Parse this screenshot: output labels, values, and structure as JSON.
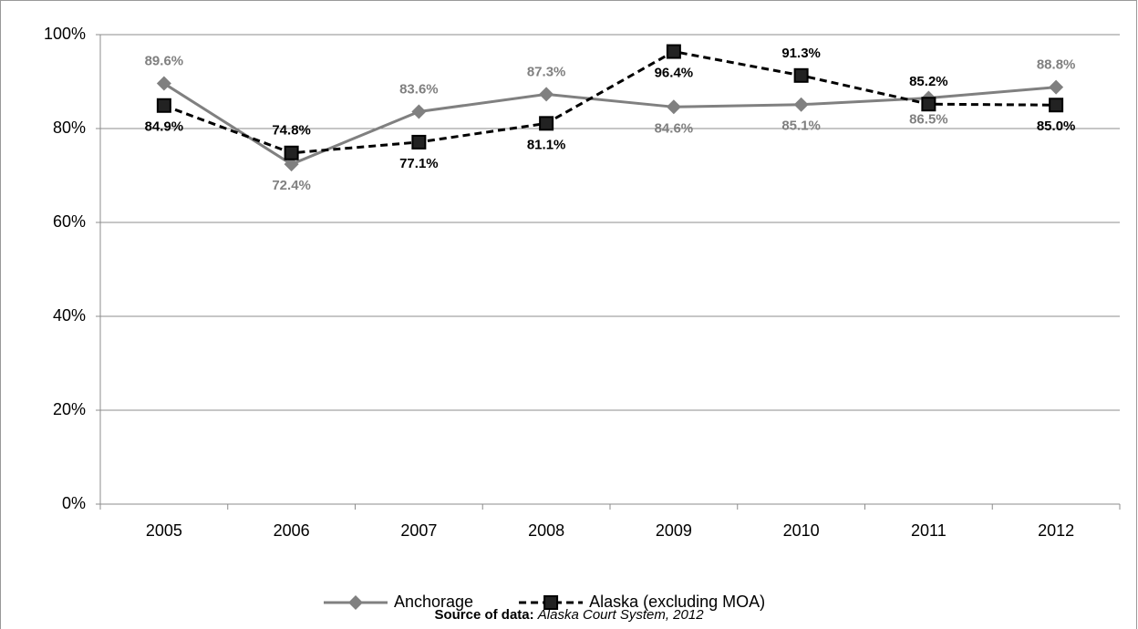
{
  "chart_data": {
    "type": "line",
    "categories": [
      "2005",
      "2006",
      "2007",
      "2008",
      "2009",
      "2010",
      "2011",
      "2012"
    ],
    "series": [
      {
        "name": "Anchorage",
        "color": "#808080",
        "marker": "diamond",
        "line_style": "solid",
        "values": [
          89.6,
          72.4,
          83.6,
          87.3,
          84.6,
          85.1,
          86.5,
          88.8
        ],
        "value_labels": [
          "89.6%",
          "72.4%",
          "83.6%",
          "87.3%",
          "84.6%",
          "85.1%",
          "86.5%",
          "88.8%"
        ]
      },
      {
        "name": "Alaska (excluding MOA)",
        "color": "#000000",
        "marker": "square",
        "line_style": "dashed",
        "values": [
          84.9,
          74.8,
          77.1,
          81.1,
          96.4,
          91.3,
          85.2,
          85.0
        ],
        "value_labels": [
          "84.9%",
          "74.8%",
          "77.1%",
          "81.1%",
          "96.4%",
          "91.3%",
          "85.2%",
          "85.0%"
        ]
      }
    ],
    "ylim": [
      0,
      100
    ],
    "yticks": [
      {
        "value": 0,
        "label": "0%"
      },
      {
        "value": 20,
        "label": "20%"
      },
      {
        "value": 40,
        "label": "40%"
      },
      {
        "value": 60,
        "label": "60%"
      },
      {
        "value": 80,
        "label": "80%"
      },
      {
        "value": 100,
        "label": "100%"
      }
    ],
    "grid": true,
    "legend": "bottom",
    "source": {
      "label": "Source of data:",
      "text": "Alaska Court System, 2012"
    }
  }
}
